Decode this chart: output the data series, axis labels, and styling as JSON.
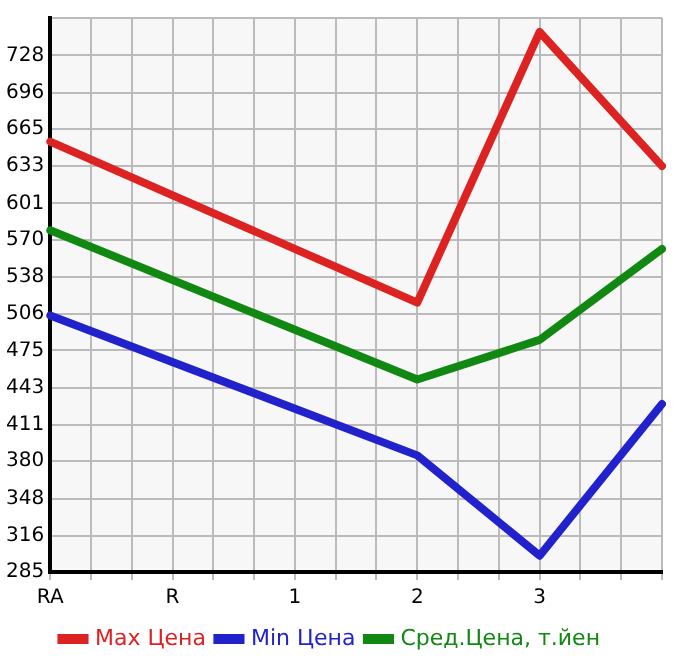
{
  "chart_data": {
    "type": "line",
    "categories": [
      "RA",
      null,
      null,
      "R",
      null,
      null,
      "1",
      null,
      null,
      "2",
      null,
      null,
      "3",
      null,
      null,
      null
    ],
    "series": [
      {
        "name": "Max Цена",
        "color": "#dd2222",
        "values": [
          654,
          null,
          null,
          null,
          null,
          null,
          null,
          null,
          null,
          516,
          null,
          null,
          748,
          null,
          null,
          633
        ]
      },
      {
        "name": "Min Цена",
        "color": "#2222cc",
        "values": [
          505,
          null,
          null,
          null,
          null,
          null,
          null,
          null,
          null,
          385,
          null,
          null,
          299,
          null,
          null,
          429
        ]
      },
      {
        "name": "Сред.Цена, т.йен",
        "color": "#118811",
        "values": [
          578,
          null,
          null,
          null,
          null,
          null,
          null,
          null,
          null,
          450,
          null,
          null,
          484,
          null,
          null,
          562
        ]
      }
    ],
    "ylim": [
      285,
      760
    ],
    "yticks": [
      285,
      316,
      348,
      380,
      411,
      443,
      475,
      506,
      538,
      570,
      601,
      633,
      665,
      696,
      728,
      {
        "value": 760,
        "label": null
      }
    ],
    "grid": true,
    "legend": "bottom",
    "marker": "none",
    "line_style": "solid"
  }
}
